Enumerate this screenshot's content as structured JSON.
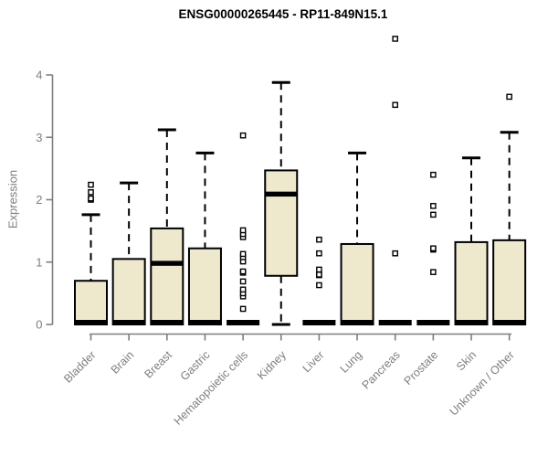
{
  "title": "ENSG00000265445 - RP11-849N15.1",
  "colors": {
    "axis": "#7e7e7e",
    "box_fill": "#EEE8CD",
    "box_border": "#000000",
    "median": "#000000",
    "outlier_fill": "#ffffff",
    "background": "#ffffff",
    "title_color": "#000000"
  },
  "chart_data": {
    "type": "boxplot",
    "title": "ENSG00000265445 - RP11-849N15.1",
    "xlabel": "",
    "ylabel": "Expression",
    "ylim": [
      0,
      4
    ],
    "yticks": [
      0,
      1,
      2,
      3,
      4
    ],
    "grid": false,
    "legend": "none",
    "categories": [
      "Bladder",
      "Brain",
      "Breast",
      "Gastric",
      "Hematopoietic cells",
      "Kidney",
      "Liver",
      "Lung",
      "Pancreas",
      "Prostate",
      "Skin",
      "Unknown / Other"
    ],
    "boxes": [
      {
        "category": "Bladder",
        "whisker_low": 0,
        "q1": 0,
        "median": 0,
        "q3": 0.7,
        "whisker_high": 1.76,
        "outliers": [
          2.0,
          2.02,
          2.12,
          2.24
        ]
      },
      {
        "category": "Brain",
        "whisker_low": 0,
        "q1": 0,
        "median": 0,
        "q3": 1.05,
        "whisker_high": 2.27,
        "outliers": []
      },
      {
        "category": "Breast",
        "whisker_low": 0,
        "q1": 0,
        "median": 0.98,
        "q3": 1.54,
        "whisker_high": 3.12,
        "outliers": []
      },
      {
        "category": "Gastric",
        "whisker_low": 0,
        "q1": 0,
        "median": 0,
        "q3": 1.22,
        "whisker_high": 2.75,
        "outliers": []
      },
      {
        "category": "Hematopoietic cells",
        "whisker_low": 0,
        "q1": 0,
        "median": 0,
        "q3": 0,
        "whisker_high": 0,
        "outliers": [
          0.25,
          0.45,
          0.5,
          0.56,
          0.69,
          0.83,
          0.85,
          1.01,
          1.08,
          1.13,
          1.4,
          1.45,
          1.51,
          3.03
        ]
      },
      {
        "category": "Kidney",
        "whisker_low": 0,
        "q1": 0.78,
        "median": 2.09,
        "q3": 2.47,
        "whisker_high": 3.88,
        "outliers": []
      },
      {
        "category": "Liver",
        "whisker_low": 0,
        "q1": 0,
        "median": 0,
        "q3": 0,
        "whisker_high": 0,
        "outliers": [
          0.63,
          0.79,
          0.8,
          0.88,
          1.14,
          1.36
        ]
      },
      {
        "category": "Lung",
        "whisker_low": 0,
        "q1": 0,
        "median": 0,
        "q3": 1.29,
        "whisker_high": 2.75,
        "outliers": []
      },
      {
        "category": "Pancreas",
        "whisker_low": 0,
        "q1": 0,
        "median": 0,
        "q3": 0,
        "whisker_high": 0,
        "outliers": [
          1.14,
          3.52,
          4.58
        ]
      },
      {
        "category": "Prostate",
        "whisker_low": 0,
        "q1": 0,
        "median": 0,
        "q3": 0,
        "whisker_high": 0,
        "outliers": [
          0.84,
          1.2,
          1.22,
          1.76,
          1.9,
          2.4
        ]
      },
      {
        "category": "Skin",
        "whisker_low": 0,
        "q1": 0,
        "median": 0,
        "q3": 1.32,
        "whisker_high": 2.67,
        "outliers": []
      },
      {
        "category": "Unknown / Other",
        "whisker_low": 0,
        "q1": 0,
        "median": 0,
        "q3": 1.35,
        "whisker_high": 3.08,
        "outliers": [
          3.65
        ]
      }
    ]
  }
}
